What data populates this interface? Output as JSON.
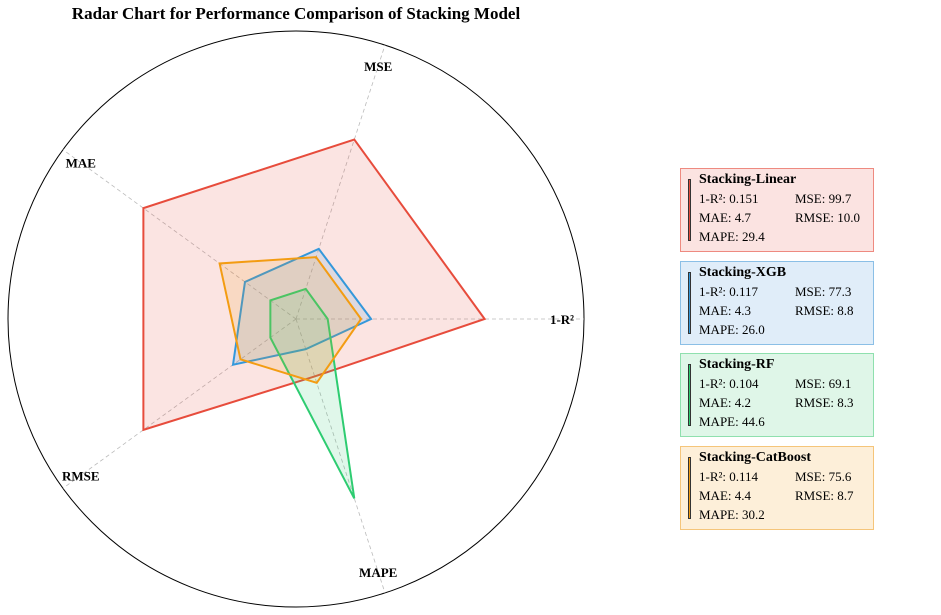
{
  "chart_data": {
    "type": "radar",
    "title": "Radar Chart for Performance Comparison of Stacking Model",
    "axes": [
      "1-R²",
      "MSE",
      "MAE",
      "RMSE",
      "MAPE"
    ],
    "normalization": "min-max per metric",
    "series": [
      {
        "name": "Stacking-Linear",
        "color": "#e74c3c",
        "bg": "#fbe3e1",
        "border": "#ee8a80",
        "values": {
          "1-R²": 0.151,
          "MSE": 99.7,
          "MAE": 4.7,
          "RMSE": 10.0,
          "MAPE": 29.4
        },
        "labels": {
          "r2": "1-R²: 0.151",
          "mse": "MSE: 99.7",
          "mae": "MAE: 4.7",
          "rmse": "RMSE: 10.0",
          "mape": "MAPE: 29.4"
        }
      },
      {
        "name": "Stacking-XGB",
        "color": "#3498db",
        "bg": "#e0edf9",
        "border": "#8bbfe6",
        "values": {
          "1-R²": 0.117,
          "MSE": 77.3,
          "MAE": 4.3,
          "RMSE": 8.8,
          "MAPE": 26.0
        },
        "labels": {
          "r2": "1-R²: 0.117",
          "mse": "MSE: 77.3",
          "mae": "MAE: 4.3",
          "rmse": "RMSE: 8.8",
          "mape": "MAPE: 26.0"
        }
      },
      {
        "name": "Stacking-RF",
        "color": "#2ecc71",
        "bg": "#dff6e8",
        "border": "#8fe0ae",
        "values": {
          "1-R²": 0.104,
          "MSE": 69.1,
          "MAE": 4.2,
          "RMSE": 8.3,
          "MAPE": 44.6
        },
        "labels": {
          "r2": "1-R²: 0.104",
          "mse": "MSE: 69.1",
          "mae": "MAE: 4.2",
          "rmse": "RMSE: 8.3",
          "mape": "MAPE: 44.6"
        }
      },
      {
        "name": "Stacking-CatBoost",
        "color": "#f39c12",
        "bg": "#fdefd9",
        "border": "#f5c57a",
        "values": {
          "1-R²": 0.114,
          "MSE": 75.6,
          "MAE": 4.4,
          "RMSE": 8.7,
          "MAPE": 30.2
        },
        "labels": {
          "r2": "1-R²: 0.114",
          "mse": "MSE: 75.6",
          "mae": "MAE: 4.4",
          "rmse": "RMSE: 8.7",
          "mape": "MAPE: 30.2"
        }
      }
    ],
    "legend_position": "right"
  }
}
